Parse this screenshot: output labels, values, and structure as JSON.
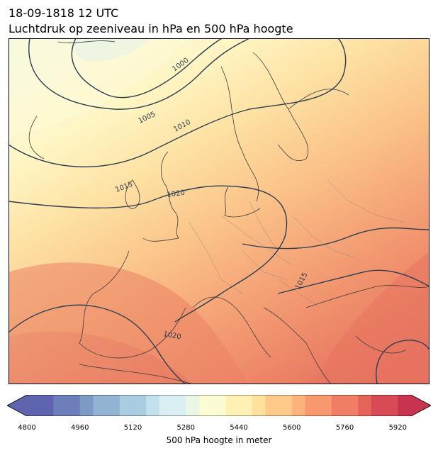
{
  "header": {
    "datetime": "18-09-1818 12 UTC",
    "subtitle": "Luchtdruk op zeeniveau in hPa en 500 hPa hoogte"
  },
  "map": {
    "region": "Europe / North Atlantic",
    "isobar_color": "#2c3e50",
    "coast_color": "#3b3b3b",
    "isobar_labels": [
      "1000",
      "1005",
      "1010",
      "1015",
      "1020",
      "1015",
      "1020"
    ]
  },
  "colorbar": {
    "label": "500 hPa hoogte in meter",
    "ticks": [
      "4800",
      "4960",
      "5120",
      "5280",
      "5440",
      "5600",
      "5760",
      "5920"
    ],
    "min": 4800,
    "max": 5960,
    "step": 40,
    "colors": [
      "#5e64ad",
      "#6c7fba",
      "#7d99c5",
      "#93b3d3",
      "#a9cce1",
      "#c1e2ec",
      "#d9eff4",
      "#eaf7e6",
      "#fbfcd2",
      "#fff0b4",
      "#ffe19e",
      "#fdca8a",
      "#fbb27c",
      "#f7986f",
      "#f07e64",
      "#e5645a",
      "#d84a55",
      "#c8344f"
    ]
  }
}
